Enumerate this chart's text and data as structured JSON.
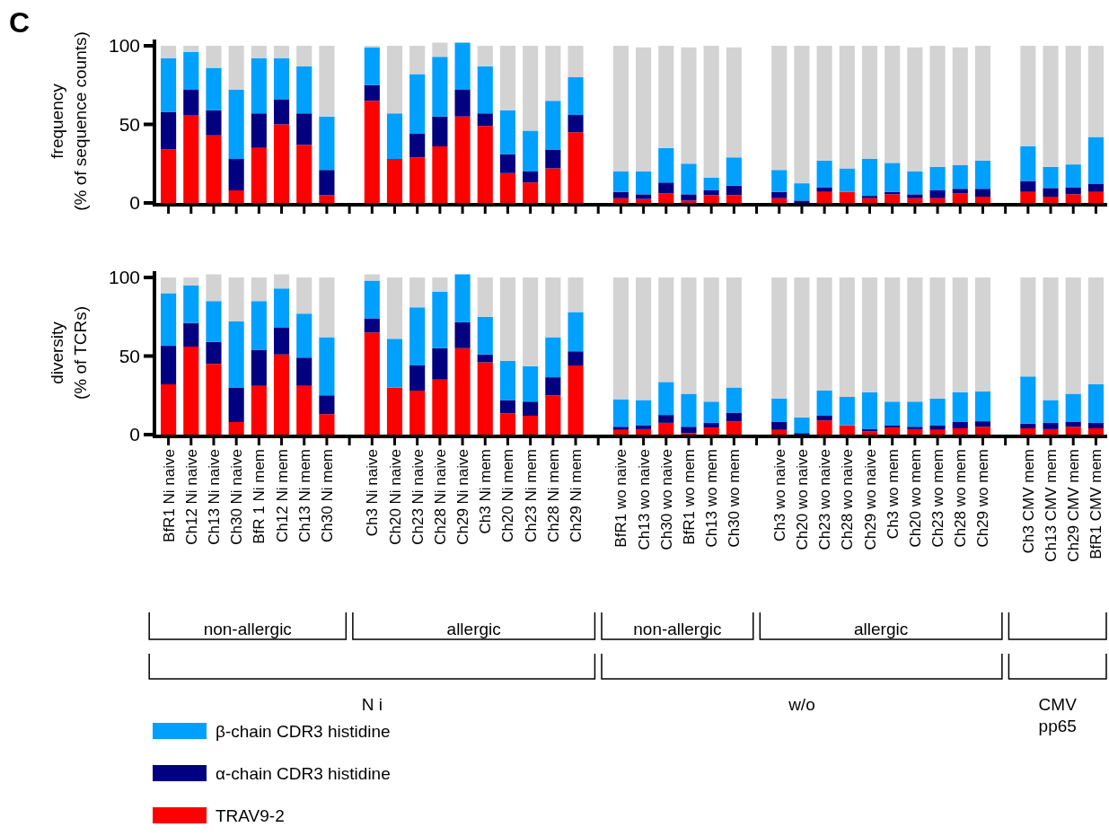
{
  "chart_data": [
    {
      "type": "bar",
      "stacked": true,
      "ylabel": "frequency\n(% of sequence counts)",
      "tick_labels": "y",
      "ylim": [
        0,
        104
      ],
      "yticks": [
        0,
        50,
        100
      ],
      "categories": [
        null,
        null,
        null,
        null,
        null,
        null,
        null,
        null,
        null,
        null,
        null,
        null,
        null,
        null,
        null,
        null,
        null,
        null,
        null,
        null,
        null,
        null,
        null,
        null,
        null,
        null,
        null,
        null,
        null,
        null,
        null,
        null,
        null,
        null,
        null,
        null,
        null,
        null,
        null,
        null,
        null,
        null
      ],
      "annotations": [
        "C"
      ],
      "series": [
        {
          "color": "#ff0000",
          "values": [
            34,
            56,
            43,
            8,
            35,
            50,
            37,
            5,
            null,
            65,
            28,
            29,
            36,
            55,
            49,
            19,
            13,
            22,
            45,
            null,
            3,
            2.5,
            6,
            1.5,
            5,
            5,
            null,
            3,
            0,
            7,
            7,
            3,
            5.5,
            3,
            3,
            6,
            4,
            null,
            7,
            4,
            5.5,
            7
          ]
        },
        {
          "color": "#000080",
          "values": [
            24,
            16,
            16,
            20,
            22,
            16,
            20,
            16,
            null,
            10,
            0,
            15,
            19,
            17,
            8,
            12,
            7,
            12,
            11,
            null,
            4,
            3,
            7,
            4,
            3,
            6,
            null,
            4,
            1.5,
            3,
            0,
            1.5,
            1.5,
            2.5,
            5,
            3,
            5,
            null,
            7,
            5.5,
            4.5,
            5
          ]
        },
        {
          "color": "#00a0ff",
          "values": [
            34,
            24,
            27,
            44,
            35,
            26,
            30,
            34,
            null,
            24,
            29,
            38,
            38,
            30,
            30,
            28,
            26,
            31,
            24,
            null,
            13,
            14.5,
            22,
            19.5,
            8,
            18,
            null,
            14,
            11,
            17,
            15,
            23.5,
            18.5,
            14.5,
            15,
            15,
            18,
            null,
            22,
            13.5,
            14.5,
            30
          ]
        },
        {
          "color": "#d3d3d3",
          "values": [
            8,
            4,
            14,
            28,
            8,
            8,
            13,
            45,
            null,
            1,
            43,
            18,
            9,
            0,
            13,
            41,
            54,
            35,
            20,
            null,
            80,
            79,
            65,
            74,
            84,
            70,
            null,
            79,
            87.5,
            73,
            78,
            72,
            74.5,
            79,
            77,
            75,
            73,
            null,
            64,
            77,
            75.5,
            58
          ]
        }
      ]
    },
    {
      "type": "bar",
      "stacked": true,
      "ylabel": "diversity\n(% of TCRs)",
      "ylim": [
        0,
        104
      ],
      "yticks": [
        0,
        50,
        100
      ],
      "legend": "bottom left",
      "categories": [
        "BfR1 Ni naive",
        "Ch12 Ni naive",
        "Ch13 Ni naive",
        "Ch30 Ni naive",
        "BfR 1 Ni mem",
        "Ch12 Ni mem",
        "Ch13 Ni mem",
        "Ch30 Ni mem",
        null,
        "Ch3 Ni naive",
        "Ch20 Ni naive",
        "Ch23 Ni naive",
        "Ch28 Ni naive",
        "Ch29 Ni naive",
        "Ch3 Ni mem",
        "Ch20 Ni mem",
        "Ch23 Ni mem",
        "Ch28 Ni mem",
        "Ch29 Ni mem",
        null,
        "BfR1 wo naive",
        "Ch13 wo naive",
        "Ch30 wo naive",
        "BfR1 wo mem",
        "Ch13 wo mem",
        "Ch30 wo mem",
        null,
        "Ch3 wo naive",
        "Ch20 wo naive",
        "Ch23 wo naive",
        "Ch28 wo naive",
        "Ch29 wo naive",
        "Ch3 wo mem",
        "Ch20 wo mem",
        "Ch23 wo mem",
        "Ch28 wo mem",
        "Ch29 wo mem",
        null,
        "Ch3 CMV mem",
        "Ch13 CMV mem",
        "Ch29 CMV mem",
        "BfR1 CMV mem"
      ],
      "annotations": [
        "non-allergic",
        "allergic",
        "non-allergic",
        "allergic",
        "N i",
        "w/o",
        "CMV\npp65"
      ],
      "series": [
        {
          "name": "TRAV9-2",
          "color": "#ff0000",
          "values": [
            32,
            56,
            45,
            8,
            31,
            51,
            31,
            13,
            null,
            65,
            30,
            28,
            35,
            55,
            46,
            13.5,
            12,
            25,
            44,
            null,
            3,
            3.5,
            7.5,
            1,
            4.5,
            8.5,
            null,
            3,
            0,
            9,
            6,
            2,
            4.5,
            3.5,
            3,
            4,
            5,
            null,
            4,
            3.5,
            5,
            4
          ]
        },
        {
          "name": "α-chain CDR3 histidine",
          "color": "#000080",
          "values": [
            24.5,
            15,
            14,
            22,
            23,
            17,
            18,
            12,
            null,
            9,
            0,
            16,
            20,
            16.5,
            5,
            8.5,
            9,
            11.5,
            9,
            null,
            2,
            2.5,
            5,
            4,
            3,
            5.5,
            null,
            5,
            1,
            3,
            0,
            1.5,
            1.5,
            1.5,
            3,
            4,
            3.5,
            null,
            3,
            4,
            3,
            3.5
          ]
        },
        {
          "name": "β-chain CDR3 histidine",
          "color": "#00a0ff",
          "values": [
            33.5,
            24,
            26,
            42,
            31,
            25,
            28,
            37,
            null,
            24,
            31,
            37,
            36,
            30.5,
            24,
            25,
            22.5,
            25.5,
            25,
            null,
            17.5,
            16,
            21,
            21,
            13.5,
            16,
            null,
            15,
            10,
            16,
            18,
            23.5,
            15,
            16,
            17,
            19,
            19,
            null,
            30,
            14.5,
            18,
            24.5
          ]
        },
        {
          "color": "#d3d3d3",
          "values": [
            10,
            5,
            17,
            28,
            15,
            9,
            23,
            38,
            null,
            4,
            39,
            19,
            9,
            0,
            25,
            53,
            56.5,
            38,
            22,
            null,
            77.5,
            78,
            66.5,
            74,
            79,
            70,
            null,
            77,
            89,
            72,
            76,
            73,
            79,
            79,
            77,
            73,
            72.5,
            null,
            63,
            78,
            74,
            68
          ]
        }
      ]
    }
  ]
}
